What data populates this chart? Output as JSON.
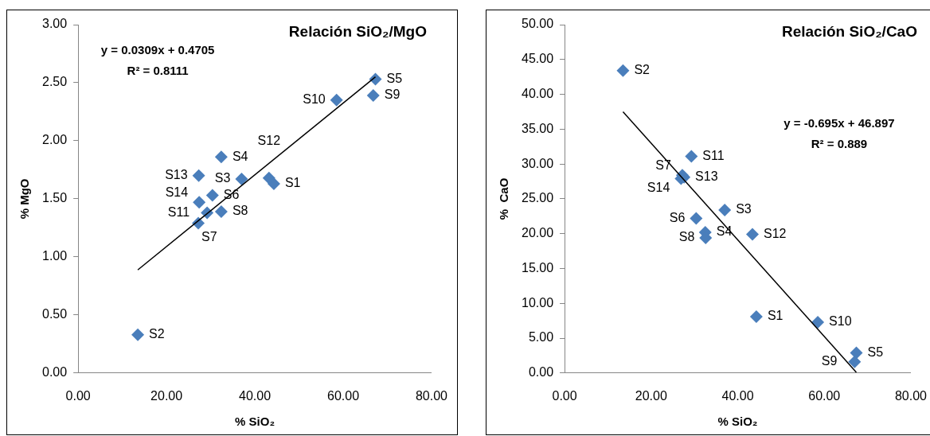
{
  "chart_data": [
    {
      "type": "scatter",
      "title": "Relación SiO₂/MgO",
      "xlabel": "% SiO₂",
      "ylabel": "% MgO",
      "annotations": [
        "y = 0.0309x + 0.4705",
        "R² = 0.8111"
      ],
      "marker": "diamond",
      "grid": false,
      "legend": false,
      "xlim": [
        0,
        80
      ],
      "xticks": [
        {
          "value": 0,
          "label": "0.00"
        },
        {
          "value": 20,
          "label": "20.00"
        },
        {
          "value": 40,
          "label": "40.00"
        },
        {
          "value": 60,
          "label": "60.00"
        },
        {
          "value": 80,
          "label": "80.00"
        }
      ],
      "ylim": [
        0,
        3
      ],
      "yticks": [
        {
          "value": 0,
          "label": "0.00"
        },
        {
          "value": 0.5,
          "label": "0.50"
        },
        {
          "value": 1,
          "label": "1.00"
        },
        {
          "value": 1.5,
          "label": "1.50"
        },
        {
          "value": 2,
          "label": "2.00"
        },
        {
          "value": 2.5,
          "label": "2.50"
        },
        {
          "value": 3,
          "label": "3.00"
        }
      ],
      "series": [
        {
          "type": "scatter",
          "color": "#4a7ebb",
          "x": [
            44.3,
            13.5,
            37.0,
            32.4,
            67.3,
            30.4,
            27.2,
            32.4,
            66.8,
            58.5,
            29.2,
            43.2,
            27.3,
            27.4
          ],
          "values": [
            1.63,
            0.33,
            1.67,
            1.86,
            2.53,
            1.53,
            1.29,
            1.39,
            2.39,
            2.35,
            1.38,
            1.68,
            1.7,
            1.47
          ],
          "value_labels": [
            "S1",
            "S2",
            "S3",
            "S4",
            "S5",
            "S6",
            "S7",
            "S8",
            "S9",
            "S10",
            "S11",
            "S12",
            "S13",
            "S14"
          ]
        },
        {
          "type": "line",
          "color": "#000000",
          "marker": "none",
          "x": [
            13.5,
            67.3
          ],
          "values": [
            0.888,
            2.55
          ]
        }
      ]
    },
    {
      "type": "scatter",
      "title": "Relación SiO₂/CaO",
      "xlabel": "% SiO₂",
      "ylabel": "%  CaO",
      "annotations": [
        "y = -0.695x + 46.897",
        "R² = 0.889"
      ],
      "marker": "diamond",
      "grid": false,
      "legend": false,
      "xlim": [
        0,
        80
      ],
      "xticks": [
        {
          "value": 0,
          "label": "0.00"
        },
        {
          "value": 20,
          "label": "20.00"
        },
        {
          "value": 40,
          "label": "40.00"
        },
        {
          "value": 60,
          "label": "60.00"
        },
        {
          "value": 80,
          "label": "80.00"
        }
      ],
      "ylim": [
        0,
        50
      ],
      "yticks": [
        {
          "value": 0,
          "label": "0.00"
        },
        {
          "value": 5,
          "label": "5.00"
        },
        {
          "value": 10,
          "label": "10.00"
        },
        {
          "value": 15,
          "label": "15.00"
        },
        {
          "value": 20,
          "label": "20.00"
        },
        {
          "value": 25,
          "label": "25.00"
        },
        {
          "value": 30,
          "label": "30.00"
        },
        {
          "value": 35,
          "label": "35.00"
        },
        {
          "value": 40,
          "label": "40.00"
        },
        {
          "value": 45,
          "label": "45.00"
        },
        {
          "value": 50,
          "label": "50.00"
        }
      ],
      "series": [
        {
          "type": "scatter",
          "color": "#4a7ebb",
          "x": [
            44.3,
            13.5,
            37.0,
            32.5,
            67.4,
            30.4,
            27.2,
            32.6,
            67.0,
            58.5,
            29.3,
            43.4,
            27.6,
            26.9
          ],
          "values": [
            8.1,
            43.4,
            23.4,
            20.2,
            2.9,
            22.2,
            28.4,
            19.4,
            1.6,
            7.3,
            31.1,
            19.9,
            28.1,
            27.9
          ],
          "value_labels": [
            "S1",
            "S2",
            "S3",
            "S4",
            "S5",
            "S6",
            "S7",
            "S8",
            "S9",
            "S10",
            "S11",
            "S12",
            "S13",
            "S14"
          ]
        },
        {
          "type": "line",
          "color": "#000000",
          "marker": "none",
          "x": [
            13.5,
            67.4
          ],
          "values": [
            37.5,
            0.1
          ]
        }
      ]
    }
  ]
}
